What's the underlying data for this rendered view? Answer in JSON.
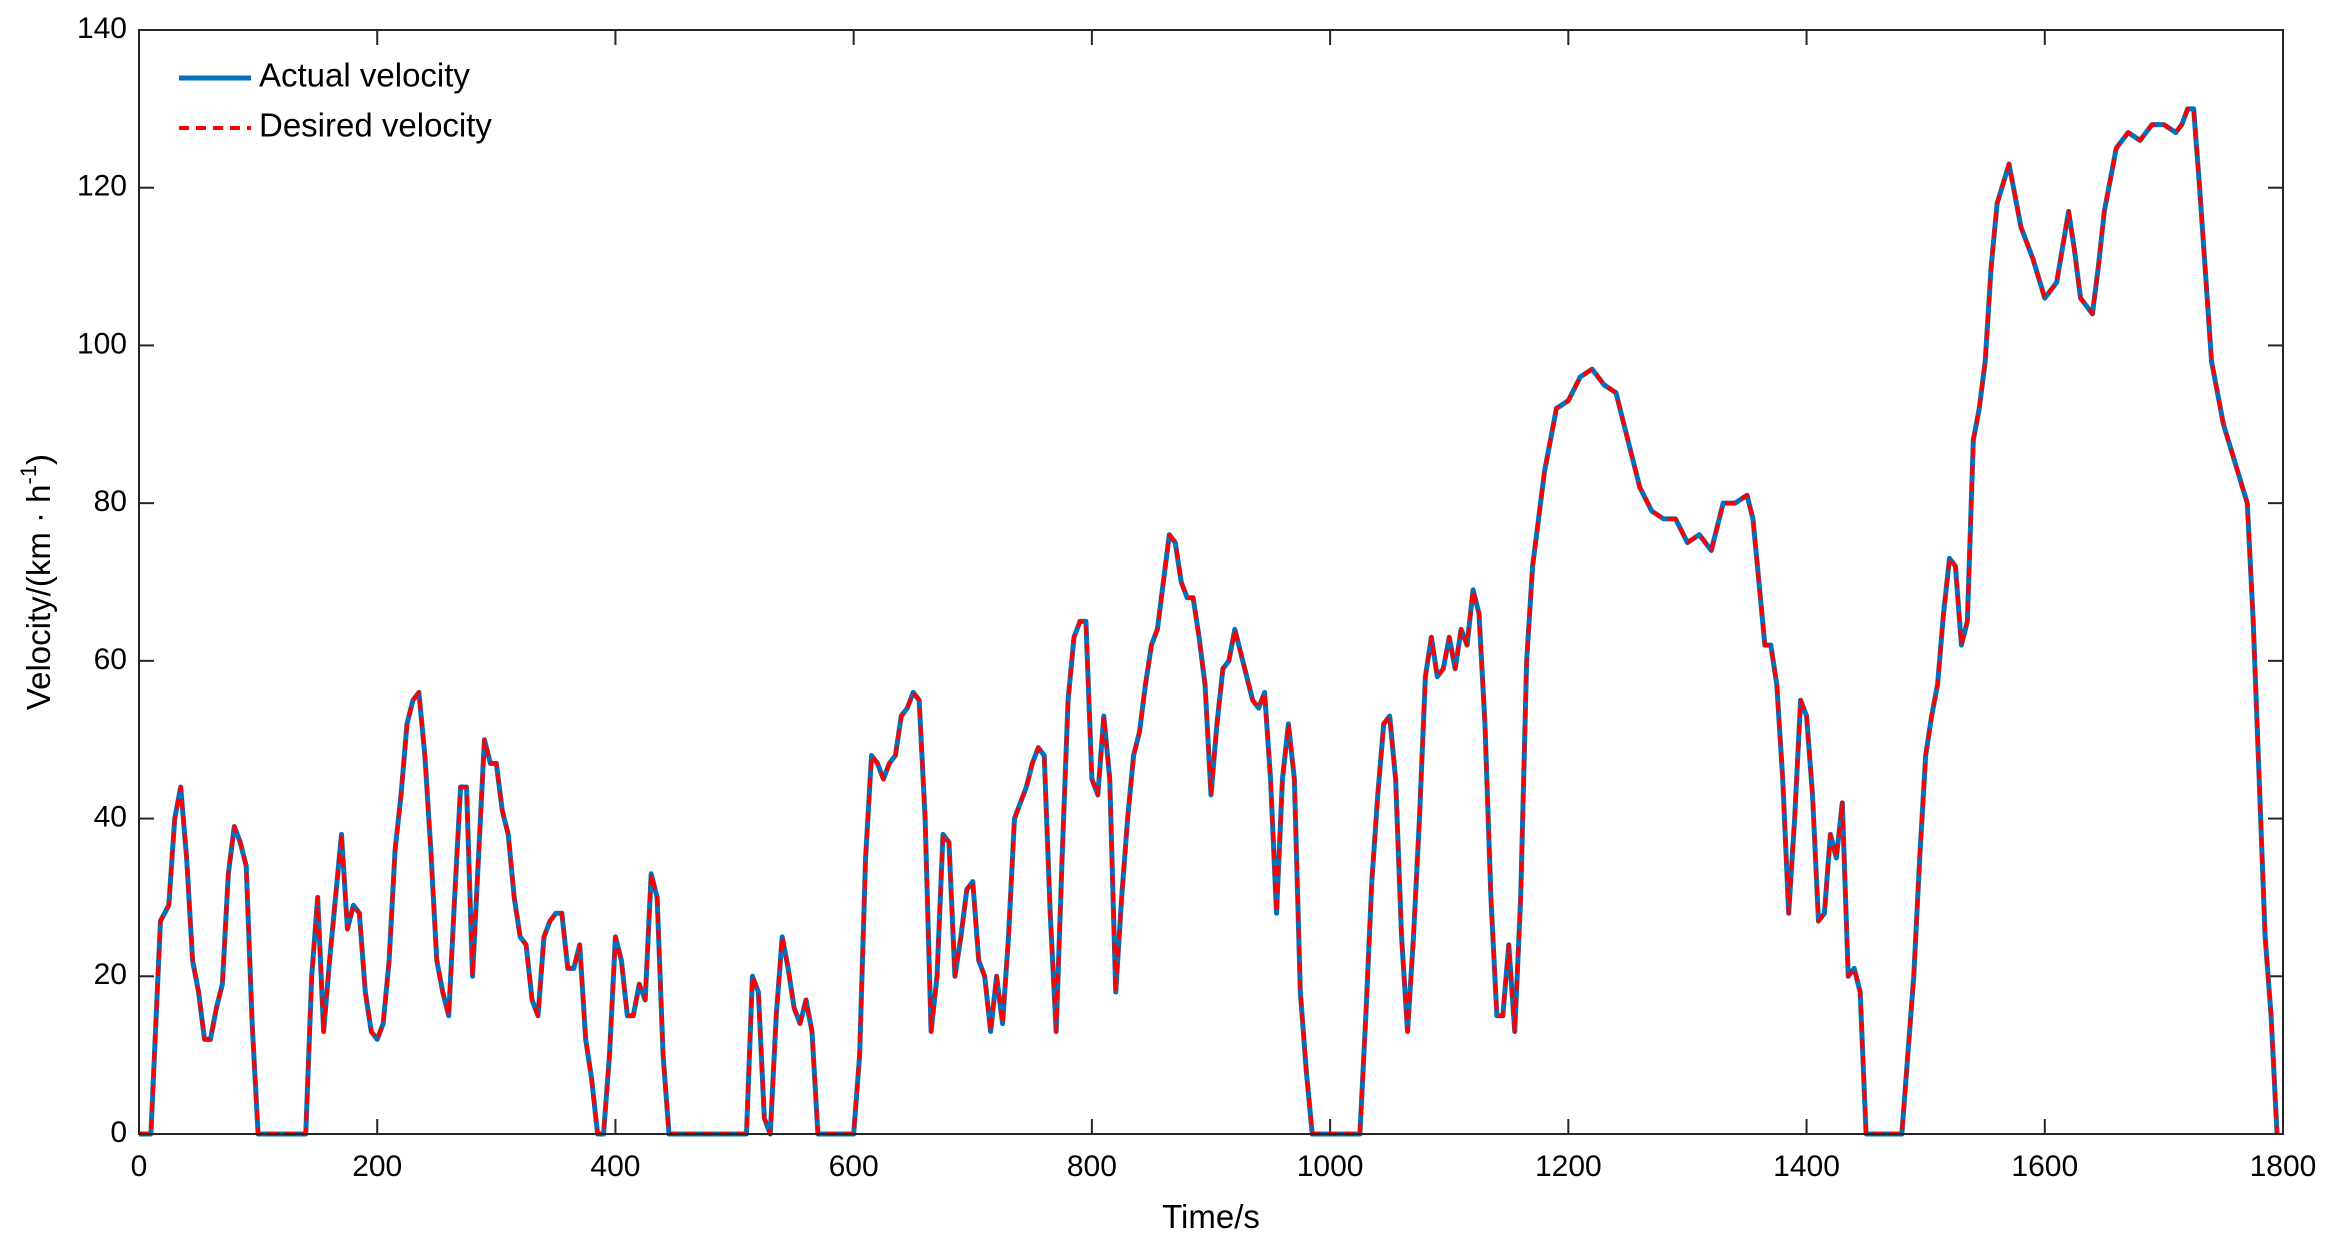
{
  "chart_data": {
    "type": "line",
    "xlabel": "Time/s",
    "ylabel_parts": [
      "Velocity/(km · h",
      "-1",
      ")"
    ],
    "xlim": [
      0,
      1800
    ],
    "ylim": [
      0,
      140
    ],
    "xticks": [
      0,
      200,
      400,
      600,
      800,
      1000,
      1200,
      1400,
      1600,
      1800
    ],
    "yticks": [
      0,
      20,
      40,
      60,
      80,
      100,
      120,
      140
    ],
    "legend": "upper-left",
    "x": [
      0,
      10,
      18,
      25,
      30,
      35,
      40,
      45,
      50,
      55,
      60,
      65,
      70,
      75,
      80,
      85,
      90,
      95,
      100,
      140,
      145,
      150,
      155,
      160,
      165,
      170,
      175,
      180,
      185,
      190,
      195,
      200,
      205,
      210,
      215,
      220,
      225,
      230,
      235,
      240,
      245,
      250,
      255,
      260,
      265,
      270,
      275,
      280,
      285,
      290,
      295,
      300,
      305,
      310,
      315,
      320,
      325,
      330,
      335,
      340,
      345,
      350,
      355,
      360,
      365,
      370,
      375,
      380,
      385,
      390,
      395,
      400,
      405,
      410,
      415,
      420,
      425,
      430,
      435,
      440,
      445,
      510,
      515,
      520,
      525,
      530,
      535,
      540,
      545,
      550,
      555,
      560,
      565,
      570,
      600,
      605,
      610,
      615,
      620,
      625,
      630,
      635,
      640,
      645,
      650,
      655,
      660,
      665,
      670,
      675,
      680,
      685,
      690,
      695,
      700,
      705,
      710,
      715,
      720,
      725,
      730,
      735,
      740,
      745,
      750,
      755,
      760,
      765,
      770,
      775,
      780,
      785,
      790,
      795,
      800,
      805,
      810,
      815,
      820,
      825,
      830,
      835,
      840,
      845,
      850,
      855,
      860,
      865,
      870,
      875,
      880,
      885,
      890,
      895,
      900,
      905,
      910,
      915,
      920,
      925,
      930,
      935,
      940,
      945,
      950,
      955,
      960,
      965,
      970,
      975,
      980,
      985,
      1025,
      1030,
      1035,
      1040,
      1045,
      1050,
      1055,
      1060,
      1065,
      1070,
      1075,
      1080,
      1085,
      1090,
      1095,
      1100,
      1105,
      1110,
      1115,
      1120,
      1125,
      1130,
      1135,
      1140,
      1145,
      1150,
      1155,
      1160,
      1165,
      1170,
      1180,
      1190,
      1200,
      1210,
      1220,
      1230,
      1240,
      1250,
      1260,
      1270,
      1280,
      1290,
      1300,
      1310,
      1320,
      1330,
      1340,
      1350,
      1355,
      1360,
      1365,
      1370,
      1375,
      1380,
      1385,
      1390,
      1395,
      1400,
      1405,
      1410,
      1415,
      1420,
      1425,
      1430,
      1435,
      1440,
      1445,
      1450,
      1480,
      1485,
      1490,
      1495,
      1500,
      1505,
      1510,
      1515,
      1520,
      1525,
      1530,
      1535,
      1540,
      1545,
      1550,
      1555,
      1560,
      1570,
      1580,
      1590,
      1600,
      1610,
      1620,
      1625,
      1630,
      1640,
      1645,
      1650,
      1660,
      1670,
      1680,
      1690,
      1700,
      1710,
      1715,
      1720,
      1725,
      1730,
      1740,
      1750,
      1760,
      1770,
      1775,
      1780,
      1785,
      1790,
      1795
    ],
    "series": [
      {
        "name": "Actual velocity",
        "color": "#0072bd",
        "style": "solid",
        "values": [
          0,
          0,
          27,
          29,
          40,
          44,
          35,
          22,
          18,
          12,
          12,
          16,
          19,
          33,
          39,
          37,
          34,
          14,
          0,
          0,
          20,
          30,
          13,
          22,
          30,
          38,
          26,
          29,
          28,
          18,
          13,
          12,
          14,
          22,
          36,
          43,
          52,
          55,
          56,
          48,
          36,
          22,
          18,
          15,
          30,
          44,
          44,
          20,
          35,
          50,
          47,
          47,
          41,
          38,
          30,
          25,
          24,
          17,
          15,
          25,
          27,
          28,
          28,
          21,
          21,
          24,
          12,
          7,
          0,
          0,
          10,
          25,
          22,
          15,
          15,
          19,
          17,
          33,
          30,
          10,
          0,
          0,
          20,
          18,
          2,
          0,
          15,
          25,
          21,
          16,
          14,
          17,
          13,
          0,
          0,
          10,
          35,
          48,
          47,
          45,
          47,
          48,
          53,
          54,
          56,
          55,
          40,
          13,
          20,
          38,
          37,
          20,
          25,
          31,
          32,
          22,
          20,
          13,
          20,
          14,
          25,
          40,
          42,
          44,
          47,
          49,
          48,
          28,
          13,
          35,
          55,
          63,
          65,
          65,
          45,
          43,
          53,
          45,
          18,
          30,
          40,
          48,
          51,
          57,
          62,
          64,
          70,
          76,
          75,
          70,
          68,
          68,
          63,
          57,
          43,
          52,
          59,
          60,
          64,
          61,
          58,
          55,
          54,
          56,
          45,
          28,
          45,
          52,
          45,
          18,
          8,
          0,
          0,
          15,
          32,
          43,
          52,
          53,
          45,
          25,
          13,
          25,
          40,
          58,
          63,
          58,
          59,
          63,
          59,
          64,
          62,
          69,
          66,
          52,
          30,
          15,
          15,
          24,
          13,
          30,
          60,
          72,
          84,
          92,
          93,
          96,
          97,
          95,
          94,
          88,
          82,
          79,
          78,
          78,
          75,
          76,
          74,
          80,
          80,
          81,
          78,
          70,
          62,
          62,
          57,
          45,
          28,
          40,
          55,
          53,
          43,
          27,
          28,
          38,
          35,
          42,
          20,
          21,
          18,
          0,
          0,
          10,
          20,
          35,
          48,
          53,
          57,
          66,
          73,
          72,
          62,
          65,
          88,
          92,
          98,
          110,
          118,
          123,
          115,
          111,
          106,
          108,
          117,
          112,
          106,
          104,
          110,
          117,
          125,
          127,
          126,
          128,
          128,
          127,
          128,
          130,
          130,
          120,
          98,
          90,
          85,
          80,
          65,
          45,
          25,
          15,
          0
        ]
      },
      {
        "name": "Desired velocity",
        "color": "#ff0000",
        "style": "dashed",
        "values": [
          0,
          0,
          27,
          29,
          40,
          44,
          35,
          22,
          18,
          12,
          12,
          16,
          19,
          33,
          39,
          37,
          34,
          14,
          0,
          0,
          20,
          30,
          13,
          22,
          30,
          38,
          26,
          29,
          28,
          18,
          13,
          12,
          14,
          22,
          36,
          43,
          52,
          55,
          56,
          48,
          36,
          22,
          18,
          15,
          30,
          44,
          44,
          20,
          35,
          50,
          47,
          47,
          41,
          38,
          30,
          25,
          24,
          17,
          15,
          25,
          27,
          28,
          28,
          21,
          21,
          24,
          12,
          7,
          0,
          0,
          10,
          25,
          22,
          15,
          15,
          19,
          17,
          33,
          30,
          10,
          0,
          0,
          20,
          18,
          2,
          0,
          15,
          25,
          21,
          16,
          14,
          17,
          13,
          0,
          0,
          10,
          35,
          48,
          47,
          45,
          47,
          48,
          53,
          54,
          56,
          55,
          40,
          13,
          20,
          38,
          37,
          20,
          25,
          31,
          32,
          22,
          20,
          13,
          20,
          14,
          25,
          40,
          42,
          44,
          47,
          49,
          48,
          28,
          13,
          35,
          55,
          63,
          65,
          65,
          45,
          43,
          53,
          45,
          18,
          30,
          40,
          48,
          51,
          57,
          62,
          64,
          70,
          76,
          75,
          70,
          68,
          68,
          63,
          57,
          43,
          52,
          59,
          60,
          64,
          61,
          58,
          55,
          54,
          56,
          45,
          28,
          45,
          52,
          45,
          18,
          8,
          0,
          0,
          15,
          32,
          43,
          52,
          53,
          45,
          25,
          13,
          25,
          40,
          58,
          63,
          58,
          59,
          63,
          59,
          64,
          62,
          69,
          66,
          52,
          30,
          15,
          15,
          24,
          13,
          30,
          60,
          72,
          84,
          92,
          93,
          96,
          97,
          95,
          94,
          88,
          82,
          79,
          78,
          78,
          75,
          76,
          74,
          80,
          80,
          81,
          78,
          70,
          62,
          62,
          57,
          45,
          28,
          40,
          55,
          53,
          43,
          27,
          28,
          38,
          35,
          42,
          20,
          21,
          18,
          0,
          0,
          10,
          20,
          35,
          48,
          53,
          57,
          66,
          73,
          72,
          62,
          65,
          88,
          92,
          98,
          110,
          118,
          123,
          115,
          111,
          106,
          108,
          117,
          112,
          106,
          104,
          110,
          117,
          125,
          127,
          126,
          128,
          128,
          127,
          128,
          130,
          130,
          120,
          98,
          90,
          85,
          80,
          65,
          45,
          25,
          15,
          0
        ]
      }
    ]
  }
}
